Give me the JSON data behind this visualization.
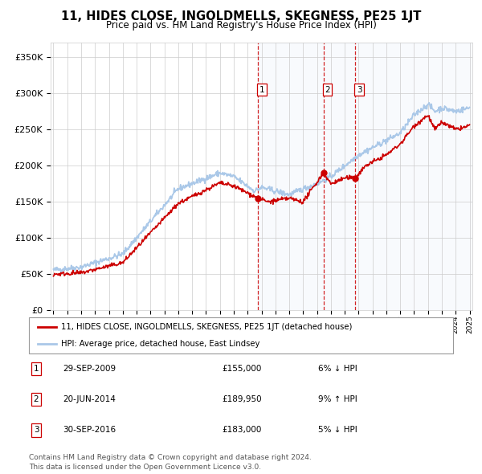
{
  "title": "11, HIDES CLOSE, INGOLDMELLS, SKEGNESS, PE25 1JT",
  "subtitle": "Price paid vs. HM Land Registry's House Price Index (HPI)",
  "legend_entry1": "11, HIDES CLOSE, INGOLDMELLS, SKEGNESS, PE25 1JT (detached house)",
  "legend_entry2": "HPI: Average price, detached house, East Lindsey",
  "footer1": "Contains HM Land Registry data © Crown copyright and database right 2024.",
  "footer2": "This data is licensed under the Open Government Licence v3.0.",
  "table": [
    {
      "num": "1",
      "date": "29-SEP-2009",
      "price": "£155,000",
      "hpi": "6% ↓ HPI"
    },
    {
      "num": "2",
      "date": "20-JUN-2014",
      "price": "£189,950",
      "hpi": "9% ↑ HPI"
    },
    {
      "num": "3",
      "date": "30-SEP-2016",
      "price": "£183,000",
      "hpi": "5% ↓ HPI"
    }
  ],
  "sale_markers": [
    {
      "year": 2009.75,
      "price": 155000,
      "num": "1"
    },
    {
      "year": 2014.46,
      "price": 189950,
      "num": "2"
    },
    {
      "year": 2016.75,
      "price": 183000,
      "num": "3"
    }
  ],
  "vline_years": [
    2009.75,
    2014.46,
    2016.75
  ],
  "red_color": "#cc0000",
  "blue_color": "#aac8e8",
  "background_shade": "#dde8f5",
  "ylim": [
    0,
    370000
  ],
  "yticks": [
    0,
    50000,
    100000,
    150000,
    200000,
    250000,
    300000,
    350000
  ],
  "start_year": 1995,
  "end_year": 2025
}
